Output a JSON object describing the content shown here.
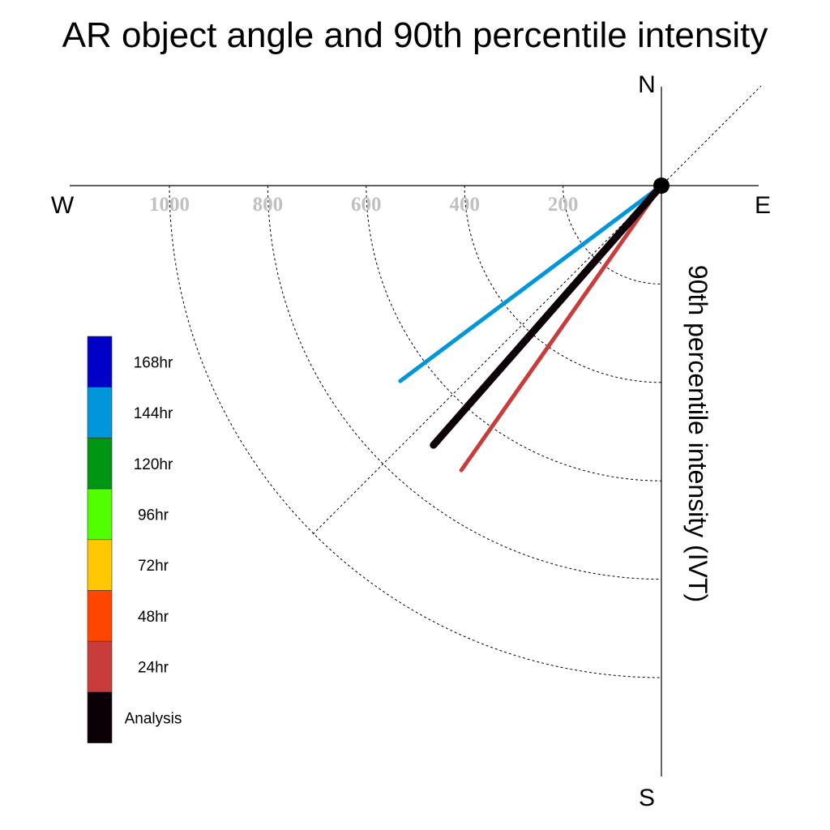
{
  "chart_data": {
    "type": "polar-line",
    "title": "AR object angle and 90th percentile intensity",
    "ylabel": "90th percentile intensity (IVT)",
    "compass": {
      "north": "N",
      "east": "E",
      "south": "S",
      "west": "W"
    },
    "rlim": [
      0,
      1000
    ],
    "radial_ticks": [
      200,
      400,
      600,
      800,
      1000
    ],
    "radial_tick_labels": [
      "200",
      "400",
      "600",
      "800",
      "1000"
    ],
    "grid": true,
    "legend_placement": "left",
    "legend": [
      {
        "label": "168hr",
        "color": "#0000c8"
      },
      {
        "label": "144hr",
        "color": "#0096dc"
      },
      {
        "label": "120hr",
        "color": "#009614"
      },
      {
        "label": "96hr",
        "color": "#50ff00"
      },
      {
        "label": "72hr",
        "color": "#ffc800"
      },
      {
        "label": "48hr",
        "color": "#ff4600"
      },
      {
        "label": "24hr",
        "color": "#c83c3c"
      },
      {
        "label": "Analysis",
        "color": "#0a0005"
      }
    ],
    "series": [
      {
        "name": "144hr",
        "color": "#0096dc",
        "angle_deg": 233.2,
        "intensity": 663
      },
      {
        "name": "24hr",
        "color": "#c83c3c",
        "angle_deg": 215.1,
        "intensity": 707
      },
      {
        "name": "Analysis",
        "color": "#0a0005",
        "angle_deg": 221.3,
        "intensity": 702
      }
    ]
  }
}
